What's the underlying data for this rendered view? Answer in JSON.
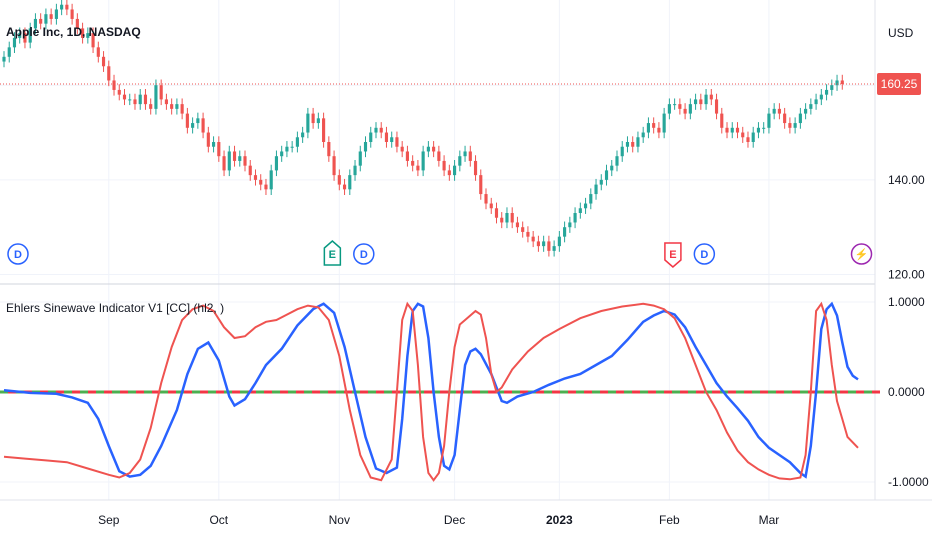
{
  "main_chart": {
    "title": "Apple Inc, 1D, NASDAQ",
    "currency": "USD",
    "last_price": "160.25",
    "last_price_value": 160.25,
    "y_ticks": [
      "140.00",
      "120.00"
    ],
    "y_tick_values": [
      140,
      120
    ],
    "colors": {
      "up": "#26a69a",
      "down": "#ef5350",
      "price_line": "#ef5350"
    }
  },
  "indicator": {
    "title": "Ehlers Sinewave Indicator V1 [CC] (hl2, )",
    "y_ticks": [
      "1.0000",
      "0.0000",
      "-1.0000"
    ],
    "y_tick_values": [
      1,
      0,
      -1
    ],
    "colors": {
      "sine": "#2962ff",
      "lead": "#ef5350",
      "zero_up": "#4caf50",
      "zero_down": "#f23645"
    }
  },
  "x_axis": {
    "labels": [
      {
        "text": "Sep",
        "bold": false,
        "day": 20
      },
      {
        "text": "Oct",
        "bold": false,
        "day": 41
      },
      {
        "text": "Nov",
        "bold": false,
        "day": 64
      },
      {
        "text": "Dec",
        "bold": false,
        "day": 86
      },
      {
        "text": "2023",
        "bold": true,
        "day": 106
      },
      {
        "text": "Feb",
        "bold": false,
        "day": 127
      },
      {
        "text": "Mar",
        "bold": false,
        "day": 146
      }
    ]
  },
  "event_markers": [
    {
      "type": "dividend",
      "letter": "D",
      "day": 0,
      "color": "#2962ff",
      "shape": "circle"
    },
    {
      "type": "earnings",
      "letter": "E",
      "day": 60,
      "color": "#089981",
      "shape": "flag-up"
    },
    {
      "type": "dividend",
      "letter": "D",
      "day": 66,
      "color": "#2962ff",
      "shape": "circle"
    },
    {
      "type": "earnings",
      "letter": "E",
      "day": 125,
      "color": "#f23645",
      "shape": "flag-down"
    },
    {
      "type": "dividend",
      "letter": "D",
      "day": 131,
      "color": "#2962ff",
      "shape": "circle"
    },
    {
      "type": "split",
      "letter": "⚡",
      "day": 161,
      "color": "#9c27b0",
      "shape": "circle"
    }
  ],
  "chart_data": [
    {
      "type": "candlestick",
      "title": "Apple Inc, 1D, NASDAQ",
      "ylabel": "USD",
      "ylim": [
        118,
        178
      ],
      "closes": [
        166,
        168,
        170,
        171,
        169,
        172,
        174,
        173,
        175,
        174,
        176,
        177,
        176,
        174,
        172,
        170,
        171,
        168,
        166,
        164,
        161,
        159,
        158,
        157,
        157,
        156,
        158,
        156,
        155,
        160,
        157,
        156,
        155,
        156,
        154,
        151,
        152,
        153,
        150,
        147,
        148,
        145,
        142,
        146,
        144,
        145,
        143,
        141,
        140,
        139,
        138,
        142,
        145,
        146,
        147,
        147,
        149,
        150,
        154,
        152,
        153,
        148,
        145,
        141,
        139,
        138,
        141,
        143,
        146,
        148,
        150,
        151,
        150,
        148,
        149,
        147,
        146,
        144,
        143,
        142,
        146,
        147,
        146,
        144,
        142,
        141,
        143,
        145,
        146,
        144,
        141,
        137,
        135,
        134,
        132,
        131,
        133,
        131,
        130,
        129,
        128,
        127,
        126,
        127,
        125,
        126,
        128,
        130,
        131,
        133,
        134,
        135,
        137,
        139,
        140,
        142,
        143,
        145,
        147,
        148,
        147,
        149,
        150,
        152,
        151,
        150,
        154,
        156,
        156,
        155,
        154,
        156,
        157,
        156,
        158,
        157,
        154,
        151,
        150,
        151,
        150,
        149,
        148,
        150,
        151,
        151,
        154,
        155,
        154,
        152,
        151,
        152,
        154,
        155,
        156,
        157,
        158,
        159,
        160,
        161,
        160.25
      ]
    },
    {
      "type": "line",
      "title": "Ehlers Sinewave Indicator V1 [CC] (hl2, )",
      "ylim": [
        -1.2,
        1.2
      ],
      "series": [
        {
          "points": [
            [
              0,
              0.02
            ],
            [
              5,
              -0.01
            ],
            [
              10,
              -0.02
            ],
            [
              13,
              -0.06
            ],
            [
              16,
              -0.12
            ],
            [
              18,
              -0.3
            ],
            [
              20,
              -0.6
            ],
            [
              22,
              -0.88
            ],
            [
              24,
              -0.94
            ],
            [
              26,
              -0.92
            ],
            [
              28,
              -0.82
            ],
            [
              30,
              -0.6
            ],
            [
              33,
              -0.2
            ],
            [
              35,
              0.2
            ],
            [
              37,
              0.48
            ],
            [
              39,
              0.55
            ],
            [
              41,
              0.35
            ],
            [
              43,
              -0.05
            ],
            [
              44,
              -0.15
            ],
            [
              46,
              -0.08
            ],
            [
              48,
              0.1
            ],
            [
              50,
              0.3
            ],
            [
              53,
              0.48
            ],
            [
              56,
              0.74
            ],
            [
              59,
              0.92
            ],
            [
              61,
              0.98
            ],
            [
              63,
              0.88
            ],
            [
              65,
              0.5
            ],
            [
              67,
              0.0
            ],
            [
              69,
              -0.5
            ],
            [
              71,
              -0.85
            ],
            [
              73,
              -0.9
            ],
            [
              75,
              -0.84
            ],
            [
              76,
              -0.3
            ],
            [
              77,
              0.4
            ],
            [
              78,
              0.9
            ],
            [
              79,
              0.98
            ],
            [
              80,
              0.95
            ],
            [
              81,
              0.6
            ],
            [
              82,
              0.0
            ],
            [
              83,
              -0.5
            ],
            [
              84,
              -0.82
            ],
            [
              85,
              -0.86
            ],
            [
              86,
              -0.7
            ],
            [
              87,
              -0.2
            ],
            [
              88,
              0.3
            ],
            [
              89,
              0.45
            ],
            [
              90,
              0.48
            ],
            [
              91,
              0.42
            ],
            [
              93,
              0.2
            ],
            [
              95,
              -0.1
            ],
            [
              96,
              -0.12
            ],
            [
              98,
              -0.05
            ],
            [
              101,
              0.0
            ],
            [
              104,
              0.08
            ],
            [
              107,
              0.15
            ],
            [
              110,
              0.2
            ],
            [
              113,
              0.3
            ],
            [
              116,
              0.4
            ],
            [
              119,
              0.58
            ],
            [
              122,
              0.78
            ],
            [
              124,
              0.85
            ],
            [
              126,
              0.9
            ],
            [
              128,
              0.86
            ],
            [
              130,
              0.72
            ],
            [
              132,
              0.5
            ],
            [
              134,
              0.3
            ],
            [
              136,
              0.1
            ],
            [
              138,
              -0.05
            ],
            [
              140,
              -0.18
            ],
            [
              142,
              -0.32
            ],
            [
              144,
              -0.5
            ],
            [
              146,
              -0.62
            ],
            [
              148,
              -0.7
            ],
            [
              150,
              -0.78
            ],
            [
              152,
              -0.9
            ],
            [
              153,
              -0.94
            ],
            [
              154,
              -0.6
            ],
            [
              155,
              0.0
            ],
            [
              156,
              0.7
            ],
            [
              157,
              0.92
            ],
            [
              158,
              0.98
            ],
            [
              159,
              0.85
            ],
            [
              160,
              0.55
            ],
            [
              161,
              0.28
            ],
            [
              162,
              0.18
            ],
            [
              163,
              0.14
            ]
          ]
        },
        {
          "points": [
            [
              0,
              -0.72
            ],
            [
              4,
              -0.74
            ],
            [
              8,
              -0.76
            ],
            [
              12,
              -0.78
            ],
            [
              16,
              -0.85
            ],
            [
              20,
              -0.92
            ],
            [
              22,
              -0.95
            ],
            [
              24,
              -0.9
            ],
            [
              26,
              -0.75
            ],
            [
              28,
              -0.4
            ],
            [
              30,
              0.1
            ],
            [
              32,
              0.5
            ],
            [
              34,
              0.8
            ],
            [
              36,
              0.92
            ],
            [
              38,
              0.96
            ],
            [
              40,
              0.9
            ],
            [
              42,
              0.72
            ],
            [
              44,
              0.6
            ],
            [
              46,
              0.62
            ],
            [
              48,
              0.72
            ],
            [
              50,
              0.78
            ],
            [
              52,
              0.8
            ],
            [
              54,
              0.86
            ],
            [
              56,
              0.92
            ],
            [
              58,
              0.96
            ],
            [
              60,
              0.94
            ],
            [
              62,
              0.8
            ],
            [
              64,
              0.4
            ],
            [
              66,
              -0.2
            ],
            [
              68,
              -0.7
            ],
            [
              70,
              -0.95
            ],
            [
              72,
              -0.98
            ],
            [
              74,
              -0.75
            ],
            [
              75,
              0.0
            ],
            [
              76,
              0.8
            ],
            [
              77,
              0.98
            ],
            [
              78,
              0.9
            ],
            [
              79,
              0.3
            ],
            [
              80,
              -0.5
            ],
            [
              81,
              -0.9
            ],
            [
              82,
              -0.98
            ],
            [
              83,
              -0.9
            ],
            [
              84,
              -0.6
            ],
            [
              85,
              0.0
            ],
            [
              86,
              0.5
            ],
            [
              87,
              0.75
            ],
            [
              88,
              0.8
            ],
            [
              89,
              0.85
            ],
            [
              90,
              0.9
            ],
            [
              91,
              0.86
            ],
            [
              92,
              0.6
            ],
            [
              93,
              0.2
            ],
            [
              94,
              0.0
            ],
            [
              95,
              0.05
            ],
            [
              97,
              0.25
            ],
            [
              100,
              0.45
            ],
            [
              103,
              0.6
            ],
            [
              106,
              0.7
            ],
            [
              110,
              0.82
            ],
            [
              114,
              0.9
            ],
            [
              118,
              0.95
            ],
            [
              122,
              0.98
            ],
            [
              124,
              0.96
            ],
            [
              126,
              0.92
            ],
            [
              128,
              0.82
            ],
            [
              130,
              0.6
            ],
            [
              132,
              0.3
            ],
            [
              134,
              0.0
            ],
            [
              136,
              -0.2
            ],
            [
              138,
              -0.45
            ],
            [
              140,
              -0.65
            ],
            [
              142,
              -0.78
            ],
            [
              144,
              -0.86
            ],
            [
              146,
              -0.92
            ],
            [
              148,
              -0.96
            ],
            [
              150,
              -0.97
            ],
            [
              152,
              -0.95
            ],
            [
              153,
              -0.7
            ],
            [
              154,
              0.0
            ],
            [
              155,
              0.9
            ],
            [
              156,
              0.98
            ],
            [
              157,
              0.8
            ],
            [
              158,
              0.3
            ],
            [
              159,
              -0.1
            ],
            [
              160,
              -0.3
            ],
            [
              161,
              -0.5
            ],
            [
              163,
              -0.62
            ]
          ]
        }
      ]
    }
  ]
}
